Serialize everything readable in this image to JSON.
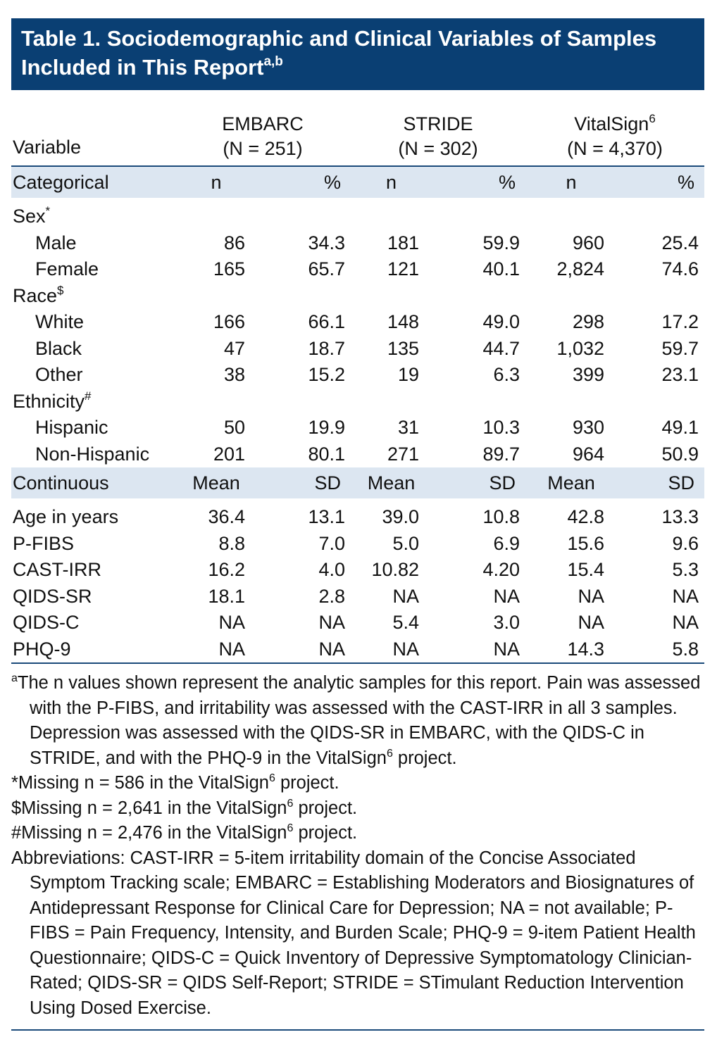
{
  "title": {
    "text": "Table 1. Sociodemographic and Clinical Variables of Samples Included in This Report",
    "sup": "a,b"
  },
  "header": {
    "variable_label": "Variable",
    "groups": [
      {
        "name": "EMBARC",
        "sup": "",
        "n": "(N = 251)"
      },
      {
        "name": "STRIDE",
        "sup": "",
        "n": "(N = 302)"
      },
      {
        "name": "VitalSign",
        "sup": "6",
        "n": "(N = 4,370)"
      }
    ]
  },
  "categorical": {
    "label": "Categorical",
    "cols": [
      "n",
      "%",
      "n",
      "%",
      "n",
      "%"
    ],
    "sections": [
      {
        "label": "Sex",
        "mark": "*",
        "rows": [
          {
            "label": "Male",
            "values": [
              "86",
              "34.3",
              "181",
              "59.9",
              "960",
              "25.4"
            ]
          },
          {
            "label": "Female",
            "values": [
              "165",
              "65.7",
              "121",
              "40.1",
              "2,824",
              "74.6"
            ]
          }
        ]
      },
      {
        "label": "Race",
        "mark": "$",
        "rows": [
          {
            "label": "White",
            "values": [
              "166",
              "66.1",
              "148",
              "49.0",
              "298",
              "17.2"
            ]
          },
          {
            "label": "Black",
            "values": [
              "47",
              "18.7",
              "135",
              "44.7",
              "1,032",
              "59.7"
            ]
          },
          {
            "label": "Other",
            "values": [
              "38",
              "15.2",
              "19",
              "6.3",
              "399",
              "23.1"
            ]
          }
        ]
      },
      {
        "label": "Ethnicity",
        "mark": "#",
        "rows": [
          {
            "label": "Hispanic",
            "values": [
              "50",
              "19.9",
              "31",
              "10.3",
              "930",
              "49.1"
            ]
          },
          {
            "label": "Non-Hispanic",
            "values": [
              "201",
              "80.1",
              "271",
              "89.7",
              "964",
              "50.9"
            ]
          }
        ]
      }
    ]
  },
  "continuous": {
    "label": "Continuous",
    "cols": [
      "Mean",
      "SD",
      "Mean",
      "SD",
      "Mean",
      "SD"
    ],
    "rows": [
      {
        "label": "Age in years",
        "values": [
          "36.4",
          "13.1",
          "39.0",
          "10.8",
          "42.8",
          "13.3"
        ]
      },
      {
        "label": "P-FIBS",
        "values": [
          "8.8",
          "7.0",
          "5.0",
          "6.9",
          "15.6",
          "9.6"
        ]
      },
      {
        "label": "CAST-IRR",
        "values": [
          "16.2",
          "4.0",
          "10.82",
          "4.20",
          "15.4",
          "5.3"
        ]
      },
      {
        "label": "QIDS-SR",
        "values": [
          "18.1",
          "2.8",
          "NA",
          "NA",
          "NA",
          "NA"
        ]
      },
      {
        "label": "QIDS-C",
        "values": [
          "NA",
          "NA",
          "5.4",
          "3.0",
          "NA",
          "NA"
        ]
      },
      {
        "label": "PHQ-9",
        "values": [
          "NA",
          "NA",
          "NA",
          "NA",
          "14.3",
          "5.8"
        ]
      }
    ]
  },
  "footnotes": {
    "a": {
      "mark": "a",
      "part1": "The n values shown represent the analytic samples for this report. Pain was assessed with the P-FIBS, and irritability was assessed with the CAST-IRR in all 3 samples. Depression was assessed with the QIDS-SR in EMBARC, with the QIDS-C in STRIDE, and with the PHQ-9 in the VitalSign",
      "sup": "6",
      "part2": " project."
    },
    "star": {
      "text": "*Missing n = 586 in the VitalSign",
      "sup": "6",
      "tail": " project."
    },
    "dollar": {
      "text": "$Missing n = 2,641 in the VitalSign",
      "sup": "6",
      "tail": " project."
    },
    "hash": {
      "text": "#Missing n = 2,476 in the VitalSign",
      "sup": "6",
      "tail": " project."
    },
    "abbreviations": "Abbreviations: CAST-IRR = 5-item irritability domain of the Concise Associated Symptom Tracking scale; EMBARC = Establishing Moderators and Biosignatures of Antidepressant Response for Clinical Care for Depression; NA = not available; P-FIBS = Pain Frequency, Intensity, and Burden Scale; PHQ-9 = 9-item Patient Health Questionnaire; QIDS-C = Quick Inventory of Depressive Symptomatology Clinician-Rated; QIDS-SR = QIDS Self-Report; STRIDE = STimulant Reduction Intervention Using Dosed Exercise."
  }
}
